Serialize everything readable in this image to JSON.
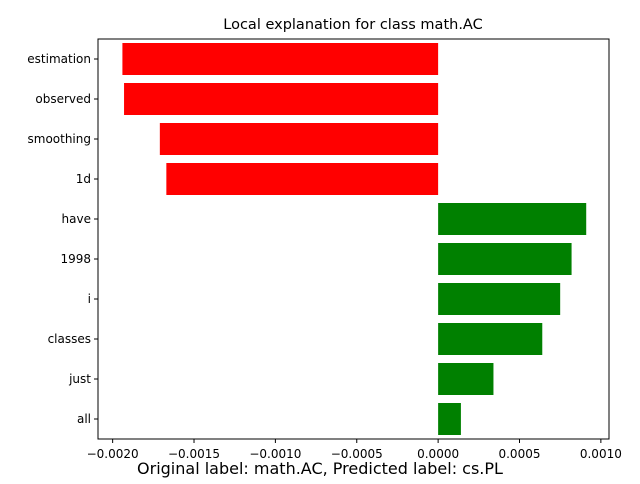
{
  "chart_data": {
    "type": "bar",
    "orientation": "horizontal",
    "title": "Local explanation for class math.AC",
    "xlabel": "",
    "ylabel": "",
    "categories": [
      "estimation",
      "observed",
      "smoothing",
      "1d",
      "have",
      "1998",
      "i",
      "classes",
      "just",
      "all"
    ],
    "values": [
      -0.00194,
      -0.00193,
      -0.00171,
      -0.00167,
      0.00091,
      0.00082,
      0.00075,
      0.00064,
      0.00034,
      0.00014
    ],
    "xlim": [
      -0.00209,
      0.00105
    ],
    "xticks": [
      -0.002,
      -0.0015,
      -0.001,
      -0.0005,
      0,
      0.0005,
      0.001
    ],
    "xtick_labels": [
      "−0.0020",
      "−0.0015",
      "−0.0010",
      "−0.0005",
      "0.0000",
      "0.0005",
      "0.0010"
    ],
    "colors": {
      "negative": "#ff0000",
      "positive": "#008000"
    },
    "grid": false,
    "legend": "none"
  },
  "caption": "Original label: math.AC, Predicted label: cs.PL"
}
